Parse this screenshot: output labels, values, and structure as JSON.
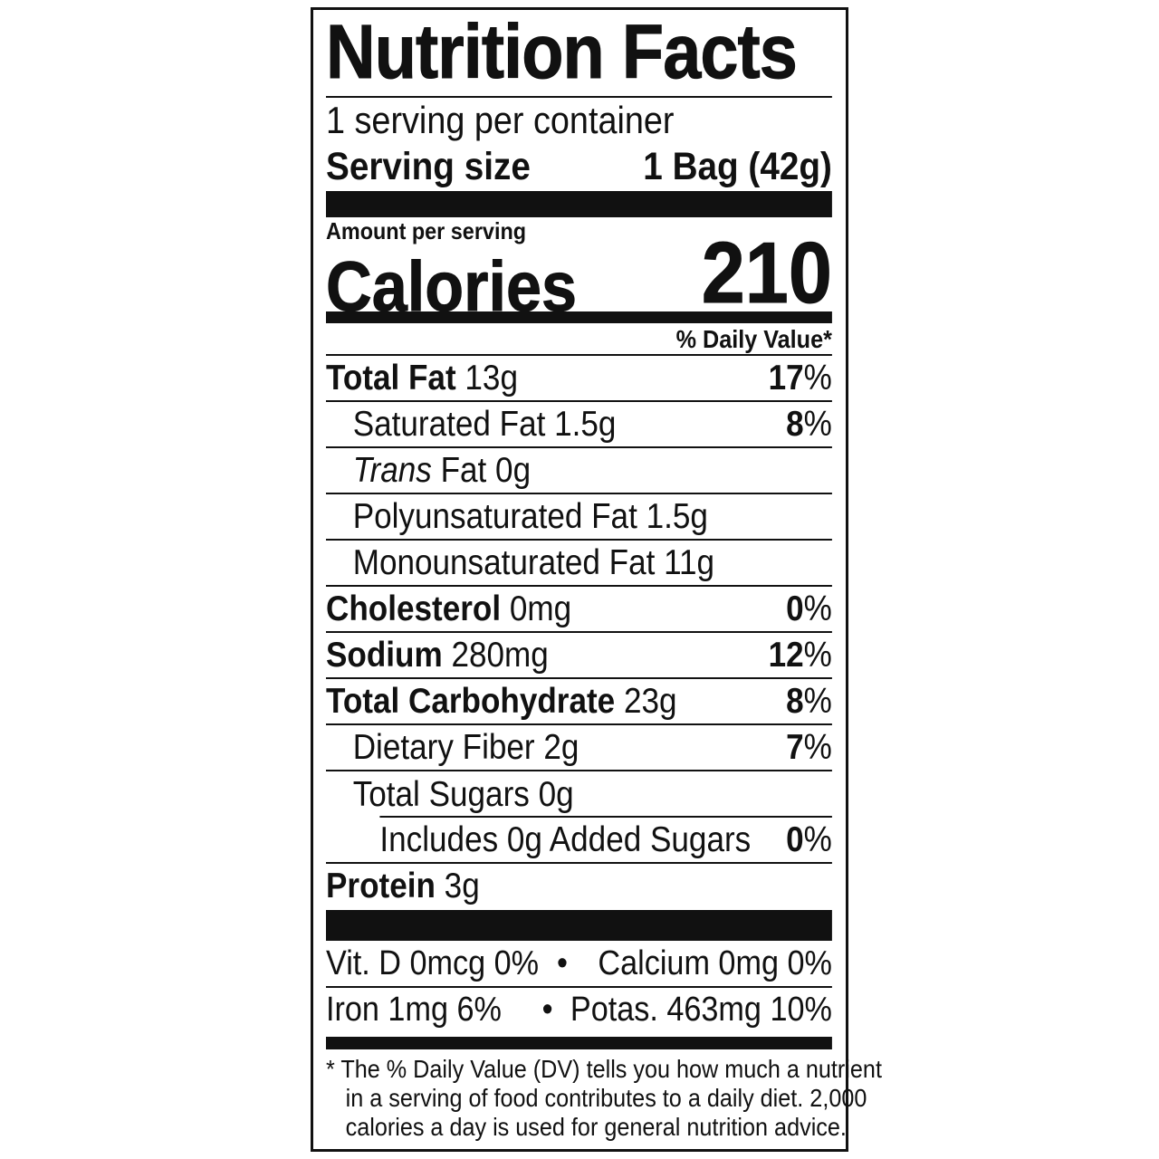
{
  "title": "Nutrition Facts",
  "servings_per_container": "1 serving per container",
  "serving_size": {
    "label": "Serving size",
    "value": "1 Bag (42g)"
  },
  "amount_per_serving": "Amount per serving",
  "calories": {
    "label": "Calories",
    "value": "210"
  },
  "daily_value_header": "% Daily Value*",
  "nutrients": [
    {
      "name": "Total Fat",
      "amount": "13g",
      "dv": "17",
      "bold": true,
      "indent": 0
    },
    {
      "name": "Saturated Fat",
      "amount": "1.5g",
      "dv": "8",
      "bold": false,
      "indent": 1
    },
    {
      "name_italic": "Trans",
      "name": "Fat",
      "amount": "0g",
      "dv": "",
      "bold": false,
      "indent": 1
    },
    {
      "name": "Polyunsaturated Fat",
      "amount": "1.5g",
      "dv": "",
      "bold": false,
      "indent": 1
    },
    {
      "name": "Monounsaturated Fat",
      "amount": "11g",
      "dv": "",
      "bold": false,
      "indent": 1
    },
    {
      "name": "Cholesterol",
      "amount": "0mg",
      "dv": "0",
      "bold": true,
      "indent": 0
    },
    {
      "name": "Sodium",
      "amount": "280mg",
      "dv": "12",
      "bold": true,
      "indent": 0
    },
    {
      "name": "Total Carbohydrate",
      "amount": "23g",
      "dv": "8",
      "bold": true,
      "indent": 0
    },
    {
      "name": "Dietary Fiber",
      "amount": "2g",
      "dv": "7",
      "bold": false,
      "indent": 1
    },
    {
      "name": "Total Sugars",
      "amount": "0g",
      "dv": "",
      "bold": false,
      "indent": 1
    },
    {
      "name": "Includes 0g Added Sugars",
      "amount": "",
      "dv": "0",
      "bold": false,
      "indent": 2
    },
    {
      "name": "Protein",
      "amount": "3g",
      "dv": "",
      "bold": true,
      "indent": 0
    }
  ],
  "percent_sign": "%",
  "vitamins": [
    {
      "left": "Vit. D 0mcg 0%",
      "right": "Calcium 0mg 0%"
    },
    {
      "left": "Iron 1mg 6%",
      "right": "Potas. 463mg 10%"
    }
  ],
  "bullet": "•",
  "footnote": [
    "* The % Daily Value (DV) tells you how much a nutrient",
    "in a serving of food contributes to a daily diet. 2,000",
    "calories a day is used for general nutrition advice."
  ]
}
